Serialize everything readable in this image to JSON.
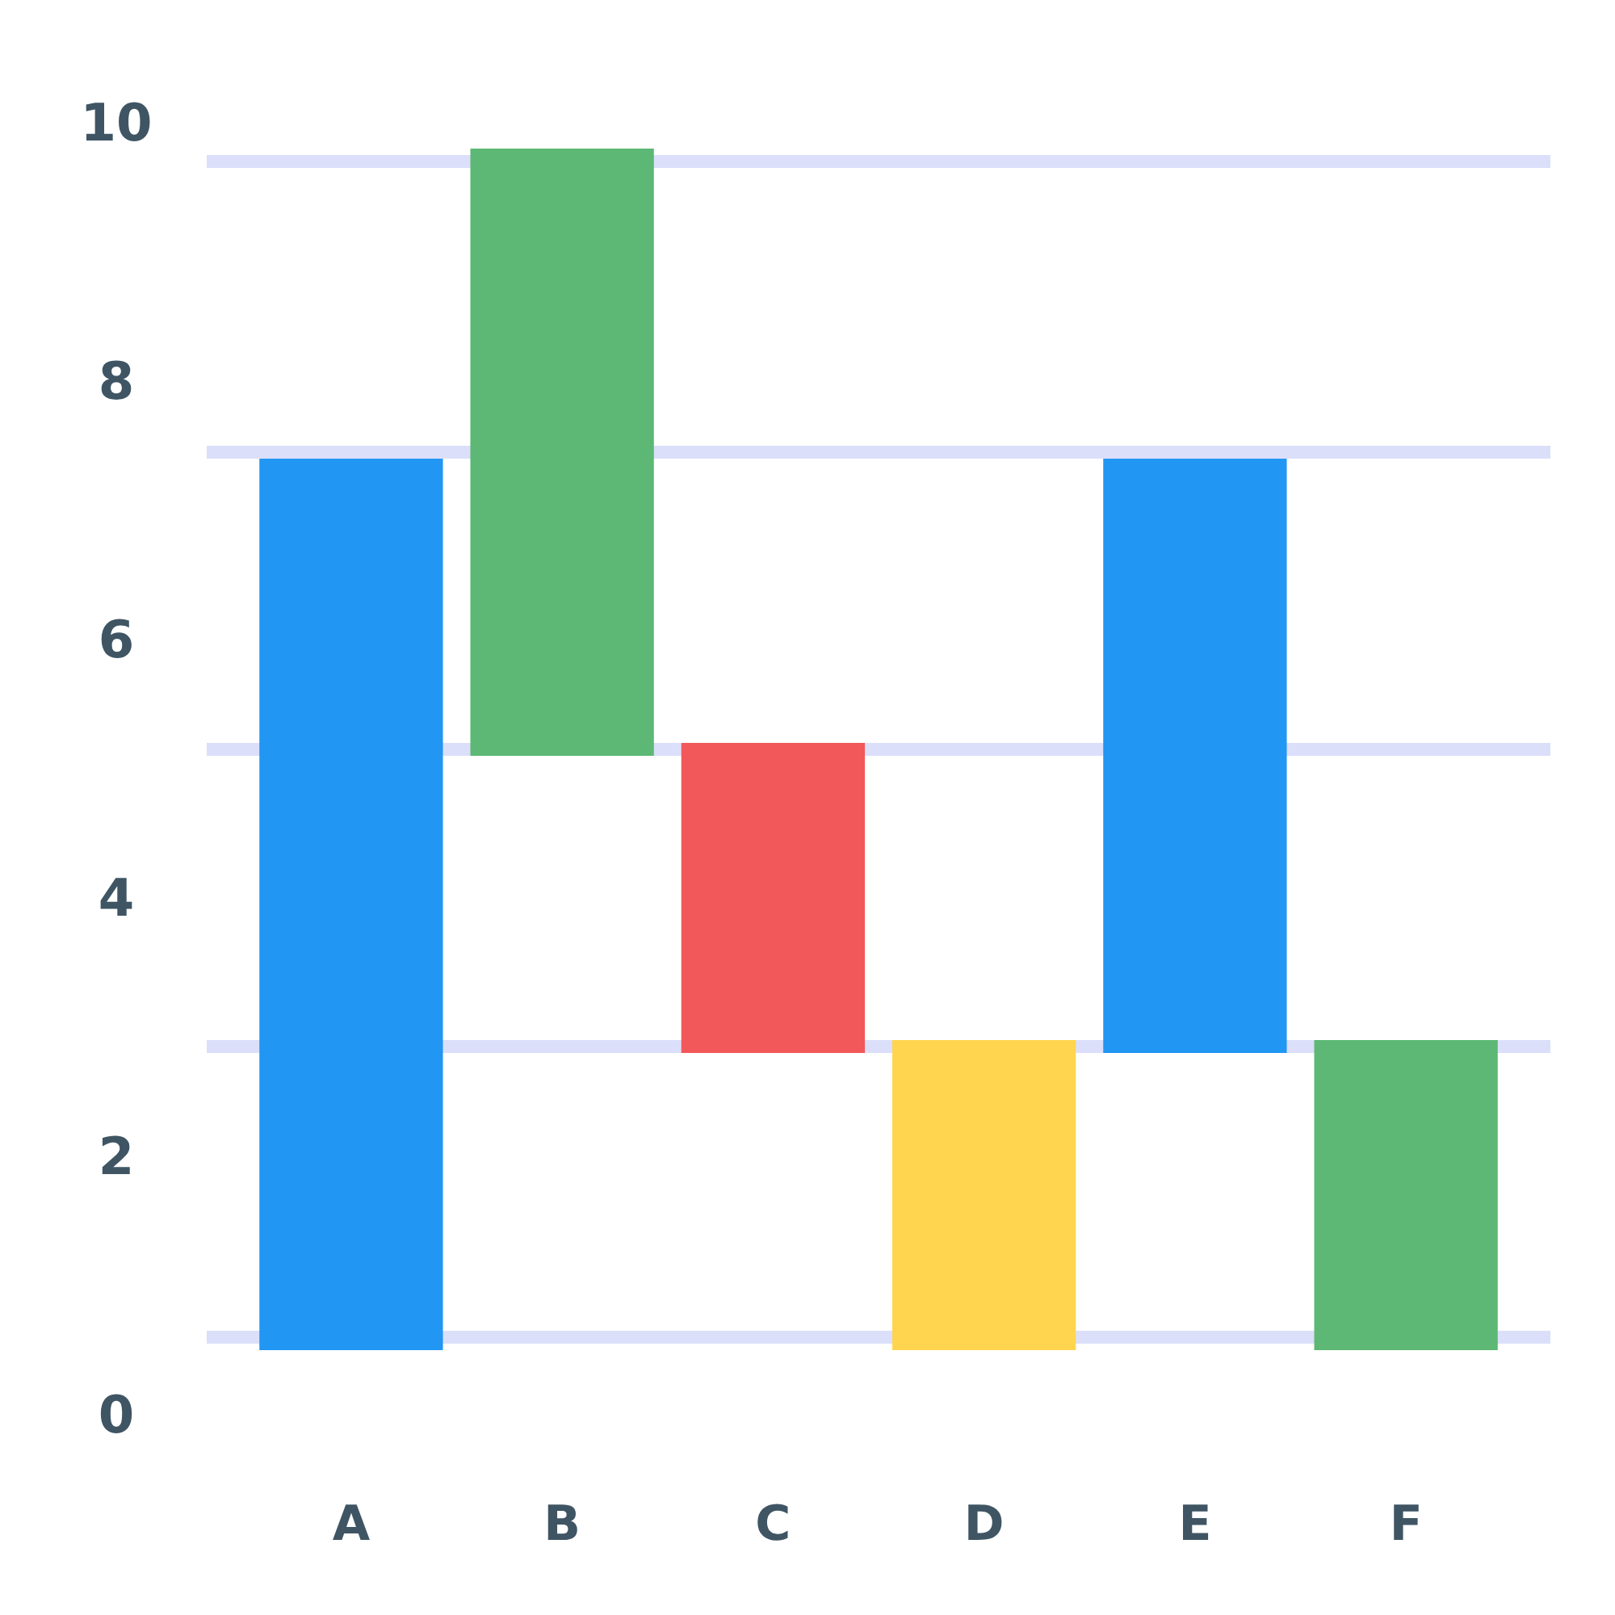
{
  "chart_data": {
    "type": "bar",
    "categories": [
      "A",
      "B",
      "C",
      "D",
      "E",
      "F"
    ],
    "values": [
      6.9,
      4.7,
      2.4,
      2.4,
      4.6,
      2.4
    ],
    "base": [
      0.5,
      5.1,
      2.8,
      0.5,
      2.8,
      0.5
    ],
    "colors": [
      "#2196f3",
      "#5cb874",
      "#f2575a",
      "#ffd54f",
      "#2196f3",
      "#5cb874"
    ],
    "ylim": [
      0,
      10
    ],
    "yticks": [
      0,
      2,
      4,
      6,
      8,
      10
    ],
    "grid": false,
    "ref_lines": [
      {
        "axis": "y",
        "value": 0.6,
        "color": "#dcdffa"
      },
      {
        "axis": "y",
        "value": 2.85,
        "color": "#dcdffa"
      },
      {
        "axis": "y",
        "value": 5.15,
        "color": "#dcdffa"
      },
      {
        "axis": "y",
        "value": 7.45,
        "color": "#dcdffa"
      },
      {
        "axis": "y",
        "value": 9.7,
        "color": "#dcdffa"
      }
    ]
  }
}
